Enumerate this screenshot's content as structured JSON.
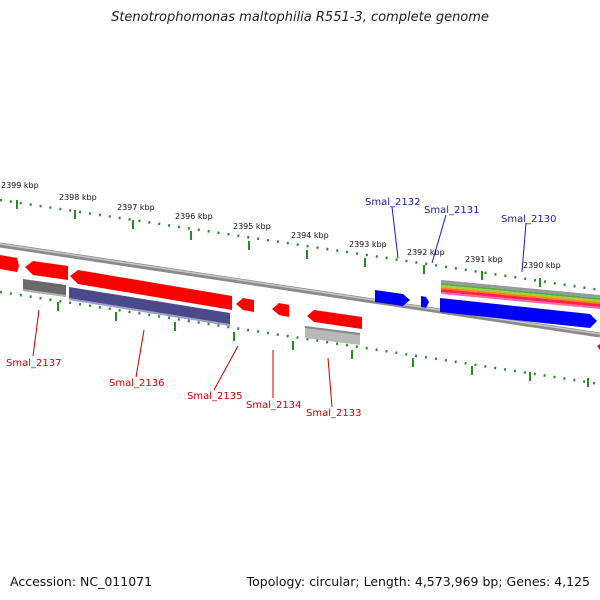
{
  "title": "Stenotrophomonas maltophilia R551-3, complete genome",
  "footer": {
    "accession": "Accession: NC_011071",
    "topology": "Topology: circular; Length: 4,573,969 bp; Genes: 4,125"
  },
  "colors": {
    "backbone": "#8a8a8a",
    "tick": "#2a8a2a",
    "gene_red": "#ff0000",
    "gene_blue": "#0000ff",
    "gene_navy": "#4a4a8a",
    "gene_gray": "#777777",
    "gene_lightgray": "#b8b8b8",
    "label_blue": "#1a1aa8",
    "label_red": "#c40000"
  },
  "scale_labels": [
    "2399 kbp",
    "2398 kbp",
    "2397 kbp",
    "2396 kbp",
    "2395 kbp",
    "2394 kbp",
    "2393 kbp",
    "2392 kbp",
    "2391 kbp",
    "2390 kbp"
  ],
  "gene_labels_top": [
    "Smal_2132",
    "Smal_2131",
    "Smal_2130"
  ],
  "gene_labels_bottom": [
    "Smal_2137",
    "Smal_2136",
    "Smal_2135",
    "Smal_2134",
    "Smal_2133"
  ]
}
